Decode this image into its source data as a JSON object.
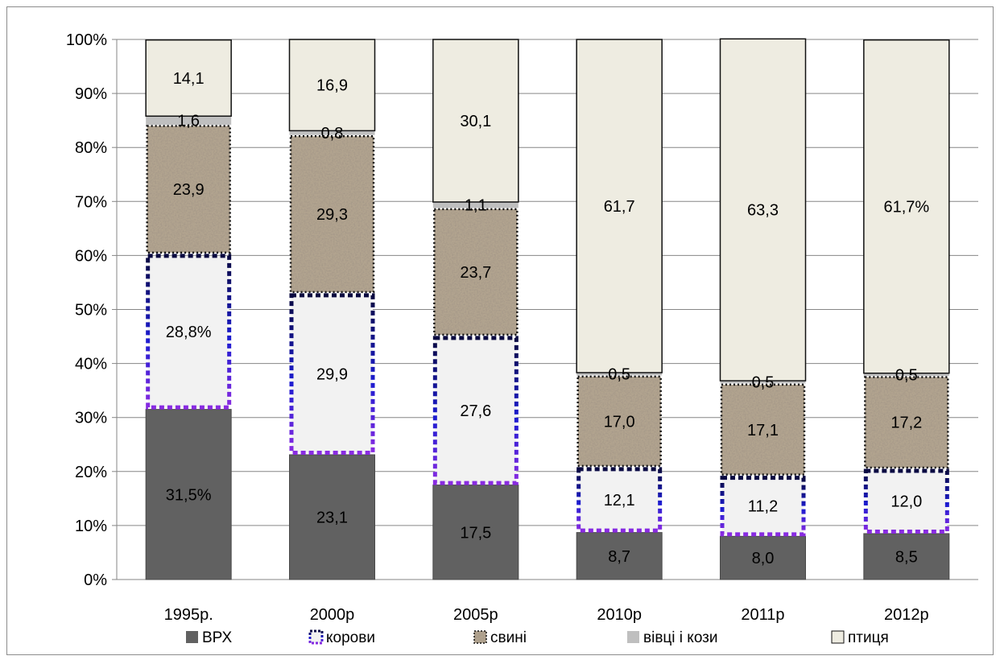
{
  "chart_data": {
    "type": "bar",
    "stacked": "percent",
    "categories": [
      "1995р.",
      "2000р",
      "2005р",
      "2010р",
      "2011р",
      "2012р"
    ],
    "series": [
      {
        "name": "ВРХ",
        "color": "#616161",
        "pattern": "solid",
        "values": [
          31.5,
          23.1,
          17.5,
          8.7,
          8.0,
          8.5
        ],
        "labels": [
          "31,5%",
          "23,1",
          "17,5",
          "8,7",
          "8,0",
          "8,5"
        ]
      },
      {
        "name": "корови",
        "color": "#f2f2f2",
        "pattern": "dashed-border",
        "values": [
          28.8,
          29.9,
          27.6,
          12.1,
          11.2,
          12.0
        ],
        "labels": [
          "28,8%",
          "29,9",
          "27,6",
          "12,1",
          "11,2",
          "12,0"
        ]
      },
      {
        "name": "свині",
        "color": "#a89882",
        "pattern": "granite",
        "values": [
          23.9,
          29.3,
          23.7,
          17.0,
          17.1,
          17.2
        ],
        "labels": [
          "23,9",
          "29,3",
          "23,7",
          "17,0",
          "17,1",
          "17,2"
        ]
      },
      {
        "name": "вівці і кози",
        "color": "#bfbfbf",
        "pattern": "solid",
        "values": [
          1.6,
          0.8,
          1.1,
          0.5,
          0.5,
          0.5
        ],
        "labels": [
          "1,6",
          "0,8",
          "1,1",
          "0,5",
          "0,5",
          "0,5"
        ]
      },
      {
        "name": "птиця",
        "color": "#eeece1",
        "pattern": "solid",
        "values": [
          14.1,
          16.9,
          30.1,
          61.7,
          63.3,
          61.7
        ],
        "labels": [
          "14,1",
          "16,9",
          "30,1",
          "61,7",
          "63,3",
          "61,7%"
        ]
      }
    ],
    "y_ticks": [
      "0%",
      "10%",
      "20%",
      "30%",
      "40%",
      "50%",
      "60%",
      "70%",
      "80%",
      "90%",
      "100%"
    ],
    "ylim": [
      0,
      100
    ],
    "grid": true,
    "legend_position": "bottom"
  }
}
